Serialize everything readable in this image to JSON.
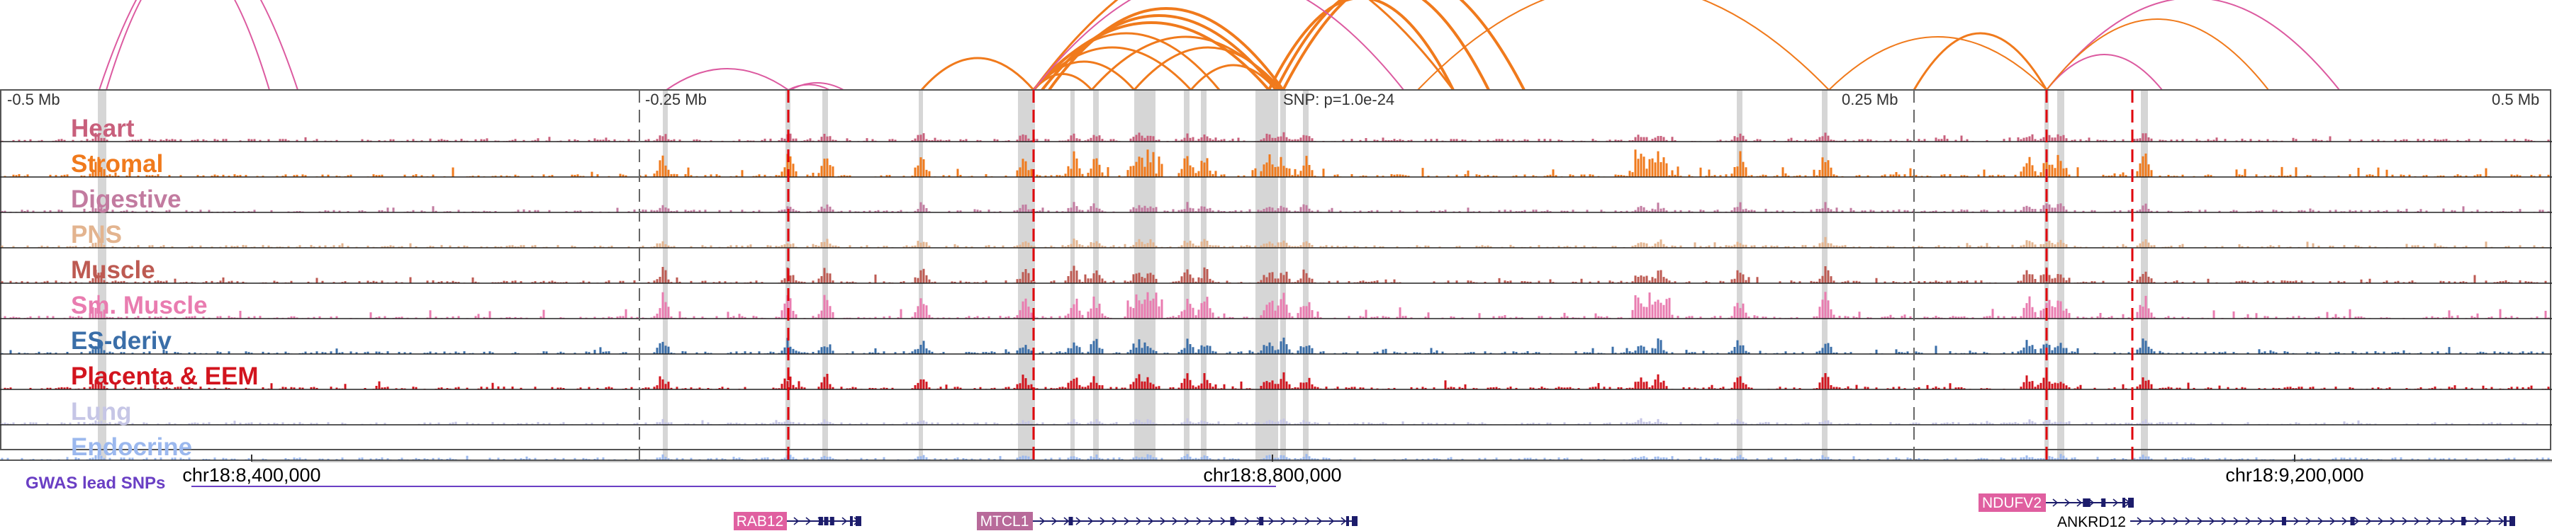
{
  "colors": {
    "background": "#ffffff",
    "frame": "#555555",
    "separator": "#222222",
    "highlight_band": "#d6d6d6",
    "credible_set_line": "#e0000b",
    "gwas_color": "#6a3fc4",
    "gene_color": "#1c1c6b",
    "arc_orange": "#f07a1c",
    "arc_pink": "#dc5aa0"
  },
  "ruler": {
    "left_label": "-0.5 Mb",
    "left_mid_label": "-0.25 Mb",
    "snp_label": "SNP: p=1.0e-24",
    "right_mid_label": "0.25 Mb",
    "right_label": "0.5 Mb"
  },
  "tracks": [
    {
      "label": "Heart",
      "color": "#c8607c",
      "style": "low",
      "seed": 11
    },
    {
      "label": "Stromal",
      "color": "#f07a1c",
      "style": "high",
      "seed": 23
    },
    {
      "label": "Digestive",
      "color": "#c27ba0",
      "style": "low",
      "seed": 37
    },
    {
      "label": "PNS",
      "color": "#e3b48f",
      "style": "low",
      "seed": 41
    },
    {
      "label": "Muscle",
      "color": "#bd5a52",
      "style": "medium",
      "seed": 53
    },
    {
      "label": "Sm. Muscle",
      "color": "#e97cb0",
      "style": "high",
      "seed": 67
    },
    {
      "label": "ES-deriv",
      "color": "#3a6ea8",
      "style": "medium",
      "seed": 71
    },
    {
      "label": "Placenta & EEM",
      "color": "#d2141e",
      "style": "medium",
      "seed": 83
    },
    {
      "label": "Lung",
      "color": "#c6c6e6",
      "style": "faint",
      "seed": 97
    },
    {
      "label": "Endocrine",
      "color": "#9bb8ee",
      "style": "faint",
      "seed": 101
    }
  ],
  "axis": {
    "tick_labels": [
      "chr18:8,400,000",
      "chr18:8,800,000",
      "chr18:9,200,000"
    ]
  },
  "gwas": {
    "label": "GWAS lead SNPs"
  },
  "genes": [
    {
      "name": "RAB12",
      "box_color": "#e05fa0",
      "text_color": "#ffffff"
    },
    {
      "name": "MTCL1",
      "box_color": "#b86a9a",
      "text_color": "#ffffff"
    },
    {
      "name": "NDUFV2",
      "box_color": "#e05fa0",
      "text_color": "#ffffff"
    },
    {
      "name": "ANKRD12",
      "box_color": "",
      "text_color": "#000000"
    }
  ]
}
